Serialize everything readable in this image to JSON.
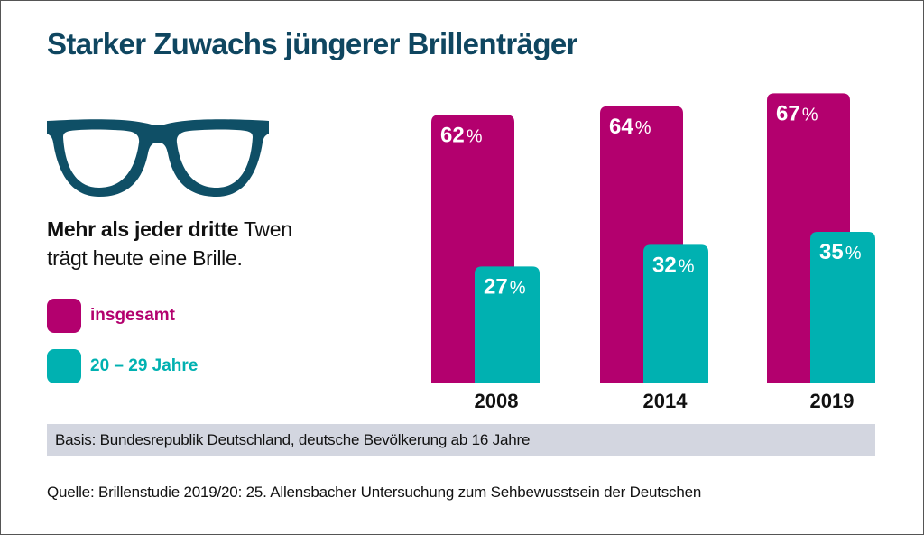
{
  "title": "Starker Zuwachs jüngerer Brillenträger",
  "subtitle": {
    "bold": "Mehr als jeder dritte",
    "normal_line1": " Twen",
    "line2": "trägt heute eine Brille."
  },
  "icon": "glasses-icon",
  "colors": {
    "title": "#0f4660",
    "glasses": "#0f4f66",
    "insgesamt": "#b3006e",
    "age_20_29": "#00b1b1",
    "basis_bg": "#d3d6e0"
  },
  "legend": [
    {
      "label": "insgesamt",
      "color": "#b3006e"
    },
    {
      "label": "20 – 29 Jahre",
      "color": "#00b1b1"
    }
  ],
  "basis": "Basis: Bundesrepublik Deutschland, deutsche Bevölkerung ab 16 Jahre",
  "source": "Quelle: Brillenstudie 2019/20: 25. Allensbacher Untersuchung zum Sehbewusstsein der Deutschen",
  "chart_data": {
    "type": "bar",
    "title": "Starker Zuwachs jüngerer Brillenträger",
    "xlabel": "",
    "ylabel": "",
    "ylim": [
      0,
      70
    ],
    "grid": false,
    "legend_position": "left",
    "unit": "%",
    "categories": [
      "2008",
      "2014",
      "2019"
    ],
    "series": [
      {
        "name": "insgesamt",
        "color": "#b3006e",
        "values": [
          62,
          64,
          67
        ]
      },
      {
        "name": "20 – 29 Jahre",
        "color": "#00b1b1",
        "values": [
          27,
          32,
          35
        ]
      }
    ]
  }
}
